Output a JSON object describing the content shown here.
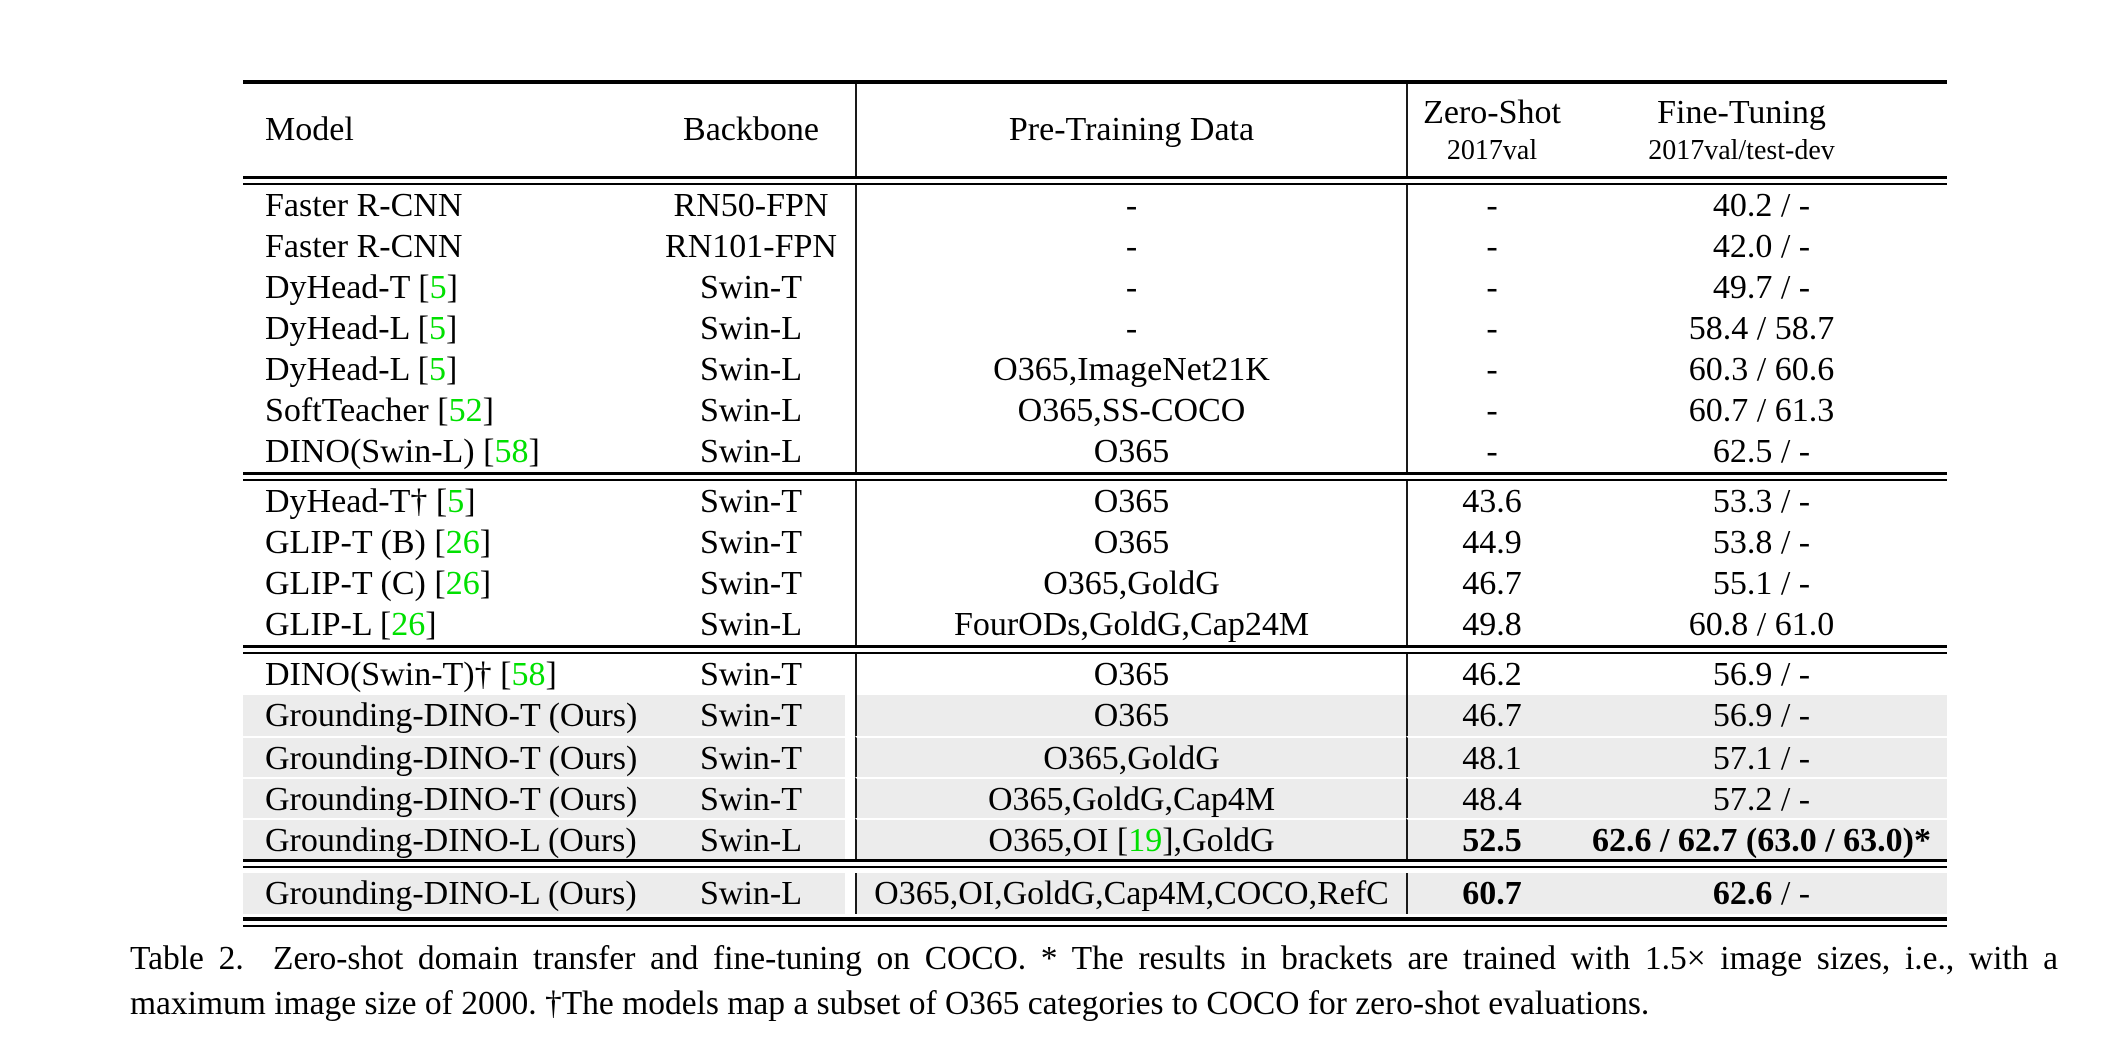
{
  "colors": {
    "cite_green": "#00E000",
    "row_highlight": "#ECECEC",
    "rule_black": "#000000"
  },
  "table": {
    "header": {
      "model": "Model",
      "backbone": "Backbone",
      "pretrain": "Pre-Training Data",
      "zeroshot_title": "Zero-Shot",
      "zeroshot_sub": "2017val",
      "finetune_title": "Fine-Tuning",
      "finetune_sub": "2017val/test-dev"
    },
    "blocks": [
      {
        "rows": [
          {
            "model": "Faster R-CNN",
            "backbone": "RN50-FPN",
            "pretrain": "-",
            "zs": "-",
            "ft": "40.2 / -"
          },
          {
            "model": "Faster R-CNN",
            "backbone": "RN101-FPN",
            "pretrain": "-",
            "zs": "-",
            "ft": "42.0 / -"
          },
          {
            "model": [
              [
                "DyHead-T ["
              ],
              [
                "5",
                "g"
              ],
              [
                "]"
              ]
            ],
            "backbone": "Swin-T",
            "pretrain": "-",
            "zs": "-",
            "ft": "49.7 / -"
          },
          {
            "model": [
              [
                "DyHead-L ["
              ],
              [
                "5",
                "g"
              ],
              [
                "]"
              ]
            ],
            "backbone": "Swin-L",
            "pretrain": "-",
            "zs": "-",
            "ft": "58.4 / 58.7"
          },
          {
            "model": [
              [
                "DyHead-L ["
              ],
              [
                "5",
                "g"
              ],
              [
                "]"
              ]
            ],
            "backbone": "Swin-L",
            "pretrain": "O365,ImageNet21K",
            "zs": "-",
            "ft": "60.3 / 60.6"
          },
          {
            "model": [
              [
                "SoftTeacher ["
              ],
              [
                "52",
                "g"
              ],
              [
                "]"
              ]
            ],
            "backbone": "Swin-L",
            "pretrain": "O365,SS-COCO",
            "zs": "-",
            "ft": "60.7 / 61.3"
          },
          {
            "model": [
              [
                "DINO(Swin-L) ["
              ],
              [
                "58",
                "g"
              ],
              [
                "]"
              ]
            ],
            "backbone": "Swin-L",
            "pretrain": "O365",
            "zs": "-",
            "ft": "62.5 / -"
          }
        ]
      },
      {
        "rows": [
          {
            "model": [
              [
                "DyHead-T† ["
              ],
              [
                "5",
                "g"
              ],
              [
                "]"
              ]
            ],
            "backbone": "Swin-T",
            "pretrain": "O365",
            "zs": "43.6",
            "ft": "53.3 / -"
          },
          {
            "model": [
              [
                "GLIP-T (B) ["
              ],
              [
                "26",
                "g"
              ],
              [
                "]"
              ]
            ],
            "backbone": "Swin-T",
            "pretrain": "O365",
            "zs": "44.9",
            "ft": "53.8 / -"
          },
          {
            "model": [
              [
                "GLIP-T (C) ["
              ],
              [
                "26",
                "g"
              ],
              [
                "]"
              ]
            ],
            "backbone": "Swin-T",
            "pretrain": "O365,GoldG",
            "zs": "46.7",
            "ft": "55.1 / -"
          },
          {
            "model": [
              [
                "GLIP-L ["
              ],
              [
                "26",
                "g"
              ],
              [
                "]"
              ]
            ],
            "backbone": "Swin-L",
            "pretrain": "FourODs,GoldG,Cap24M",
            "zs": "49.8",
            "ft": "60.8 / 61.0"
          }
        ]
      },
      {
        "rows": [
          {
            "model": [
              [
                "DINO(Swin-T)† ["
              ],
              [
                "58",
                "g"
              ],
              [
                "]"
              ]
            ],
            "backbone": "Swin-T",
            "pretrain": "O365",
            "zs": "46.2",
            "ft": "56.9 / -"
          },
          {
            "model": "Grounding-DINO-T (Ours)",
            "backbone": "Swin-T",
            "pretrain": "O365",
            "zs": "46.7",
            "ft": "56.9 / -",
            "highlight": true
          },
          {
            "model": "Grounding-DINO-T (Ours)",
            "backbone": "Swin-T",
            "pretrain": "O365,GoldG",
            "zs": "48.1",
            "ft": "57.1 / -",
            "highlight": true
          },
          {
            "model": "Grounding-DINO-T (Ours)",
            "backbone": "Swin-T",
            "pretrain": "O365,GoldG,Cap4M",
            "zs": "48.4",
            "ft": "57.2 / -",
            "highlight": true
          },
          {
            "model": "Grounding-DINO-L (Ours)",
            "backbone": "Swin-L",
            "pretrain": [
              [
                "O365,OI ["
              ],
              [
                "19",
                "g"
              ],
              [
                "],GoldG"
              ]
            ],
            "zs": [
              [
                "52.5",
                "b"
              ]
            ],
            "ft": [
              [
                "62.6 / 62.7 (63.0 / 63.0)*",
                "b"
              ]
            ],
            "highlight": true
          }
        ]
      },
      {
        "rows": [
          {
            "model": "Grounding-DINO-L (Ours)",
            "backbone": "Swin-L",
            "pretrain": "O365,OI,GoldG,Cap4M,COCO,RefC",
            "zs": [
              [
                "60.7",
                "b"
              ]
            ],
            "ft": [
              [
                "62.6",
                "b"
              ],
              [
                " / -"
              ]
            ],
            "highlight": true
          }
        ]
      }
    ]
  },
  "caption": {
    "line1": "Table 2.  Zero-shot domain transfer and fine-tuning on COCO. * The results in brackets are trained with 1.5× image sizes, i.e., with a",
    "line2": "maximum image size of 2000. †The models map a subset of O365 categories to COCO for zero-shot evaluations."
  }
}
